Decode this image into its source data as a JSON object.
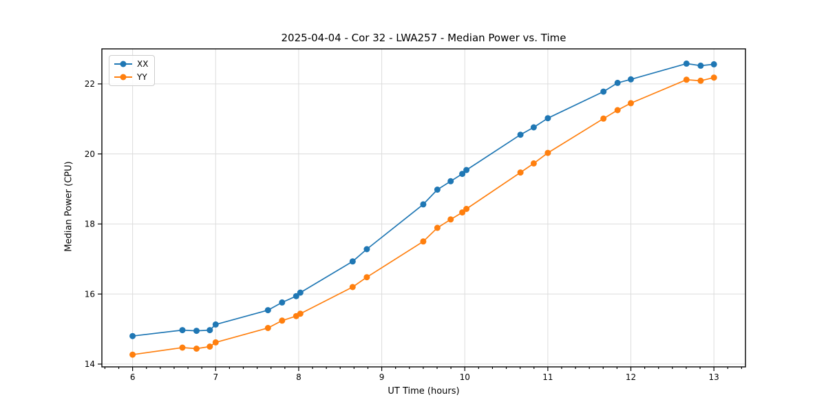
{
  "chart_data": {
    "type": "line",
    "title": "2025-04-04 - Cor 32 - LWA257 - Median Power vs. Time",
    "xlabel": "UT Time (hours)",
    "ylabel": "Median Power (CPU)",
    "xlim": [
      5.63,
      13.38
    ],
    "ylim": [
      13.92,
      23.0
    ],
    "x_ticks": [
      6,
      7,
      8,
      9,
      10,
      11,
      12,
      13
    ],
    "y_ticks": [
      14,
      16,
      18,
      20,
      22
    ],
    "x_minor_tick_step_hours": 0.16667,
    "grid": true,
    "grid_color": "#dcdcdc",
    "axis_color": "#000000",
    "legend_position": "upper-left",
    "x": [
      6.0,
      6.6,
      6.77,
      6.93,
      7.0,
      7.63,
      7.8,
      7.97,
      8.02,
      8.65,
      8.82,
      9.5,
      9.67,
      9.83,
      9.97,
      10.02,
      10.67,
      10.83,
      11.0,
      11.67,
      11.84,
      12.0,
      12.67,
      12.84,
      13.0
    ],
    "series": [
      {
        "name": "XX",
        "color": "#1f77b4",
        "values": [
          14.8,
          14.97,
          14.95,
          14.97,
          15.13,
          15.54,
          15.76,
          15.94,
          16.04,
          16.93,
          17.28,
          18.56,
          18.98,
          19.22,
          19.43,
          19.54,
          20.55,
          20.76,
          21.02,
          21.78,
          22.03,
          22.13,
          22.58,
          22.52,
          22.56
        ]
      },
      {
        "name": "YY",
        "color": "#ff7f0e",
        "values": [
          14.27,
          14.47,
          14.44,
          14.5,
          14.62,
          15.03,
          15.24,
          15.37,
          15.44,
          16.2,
          16.48,
          17.5,
          17.89,
          18.13,
          18.33,
          18.43,
          19.47,
          19.73,
          20.03,
          21.01,
          21.25,
          21.45,
          22.12,
          22.09,
          22.18
        ]
      }
    ]
  }
}
